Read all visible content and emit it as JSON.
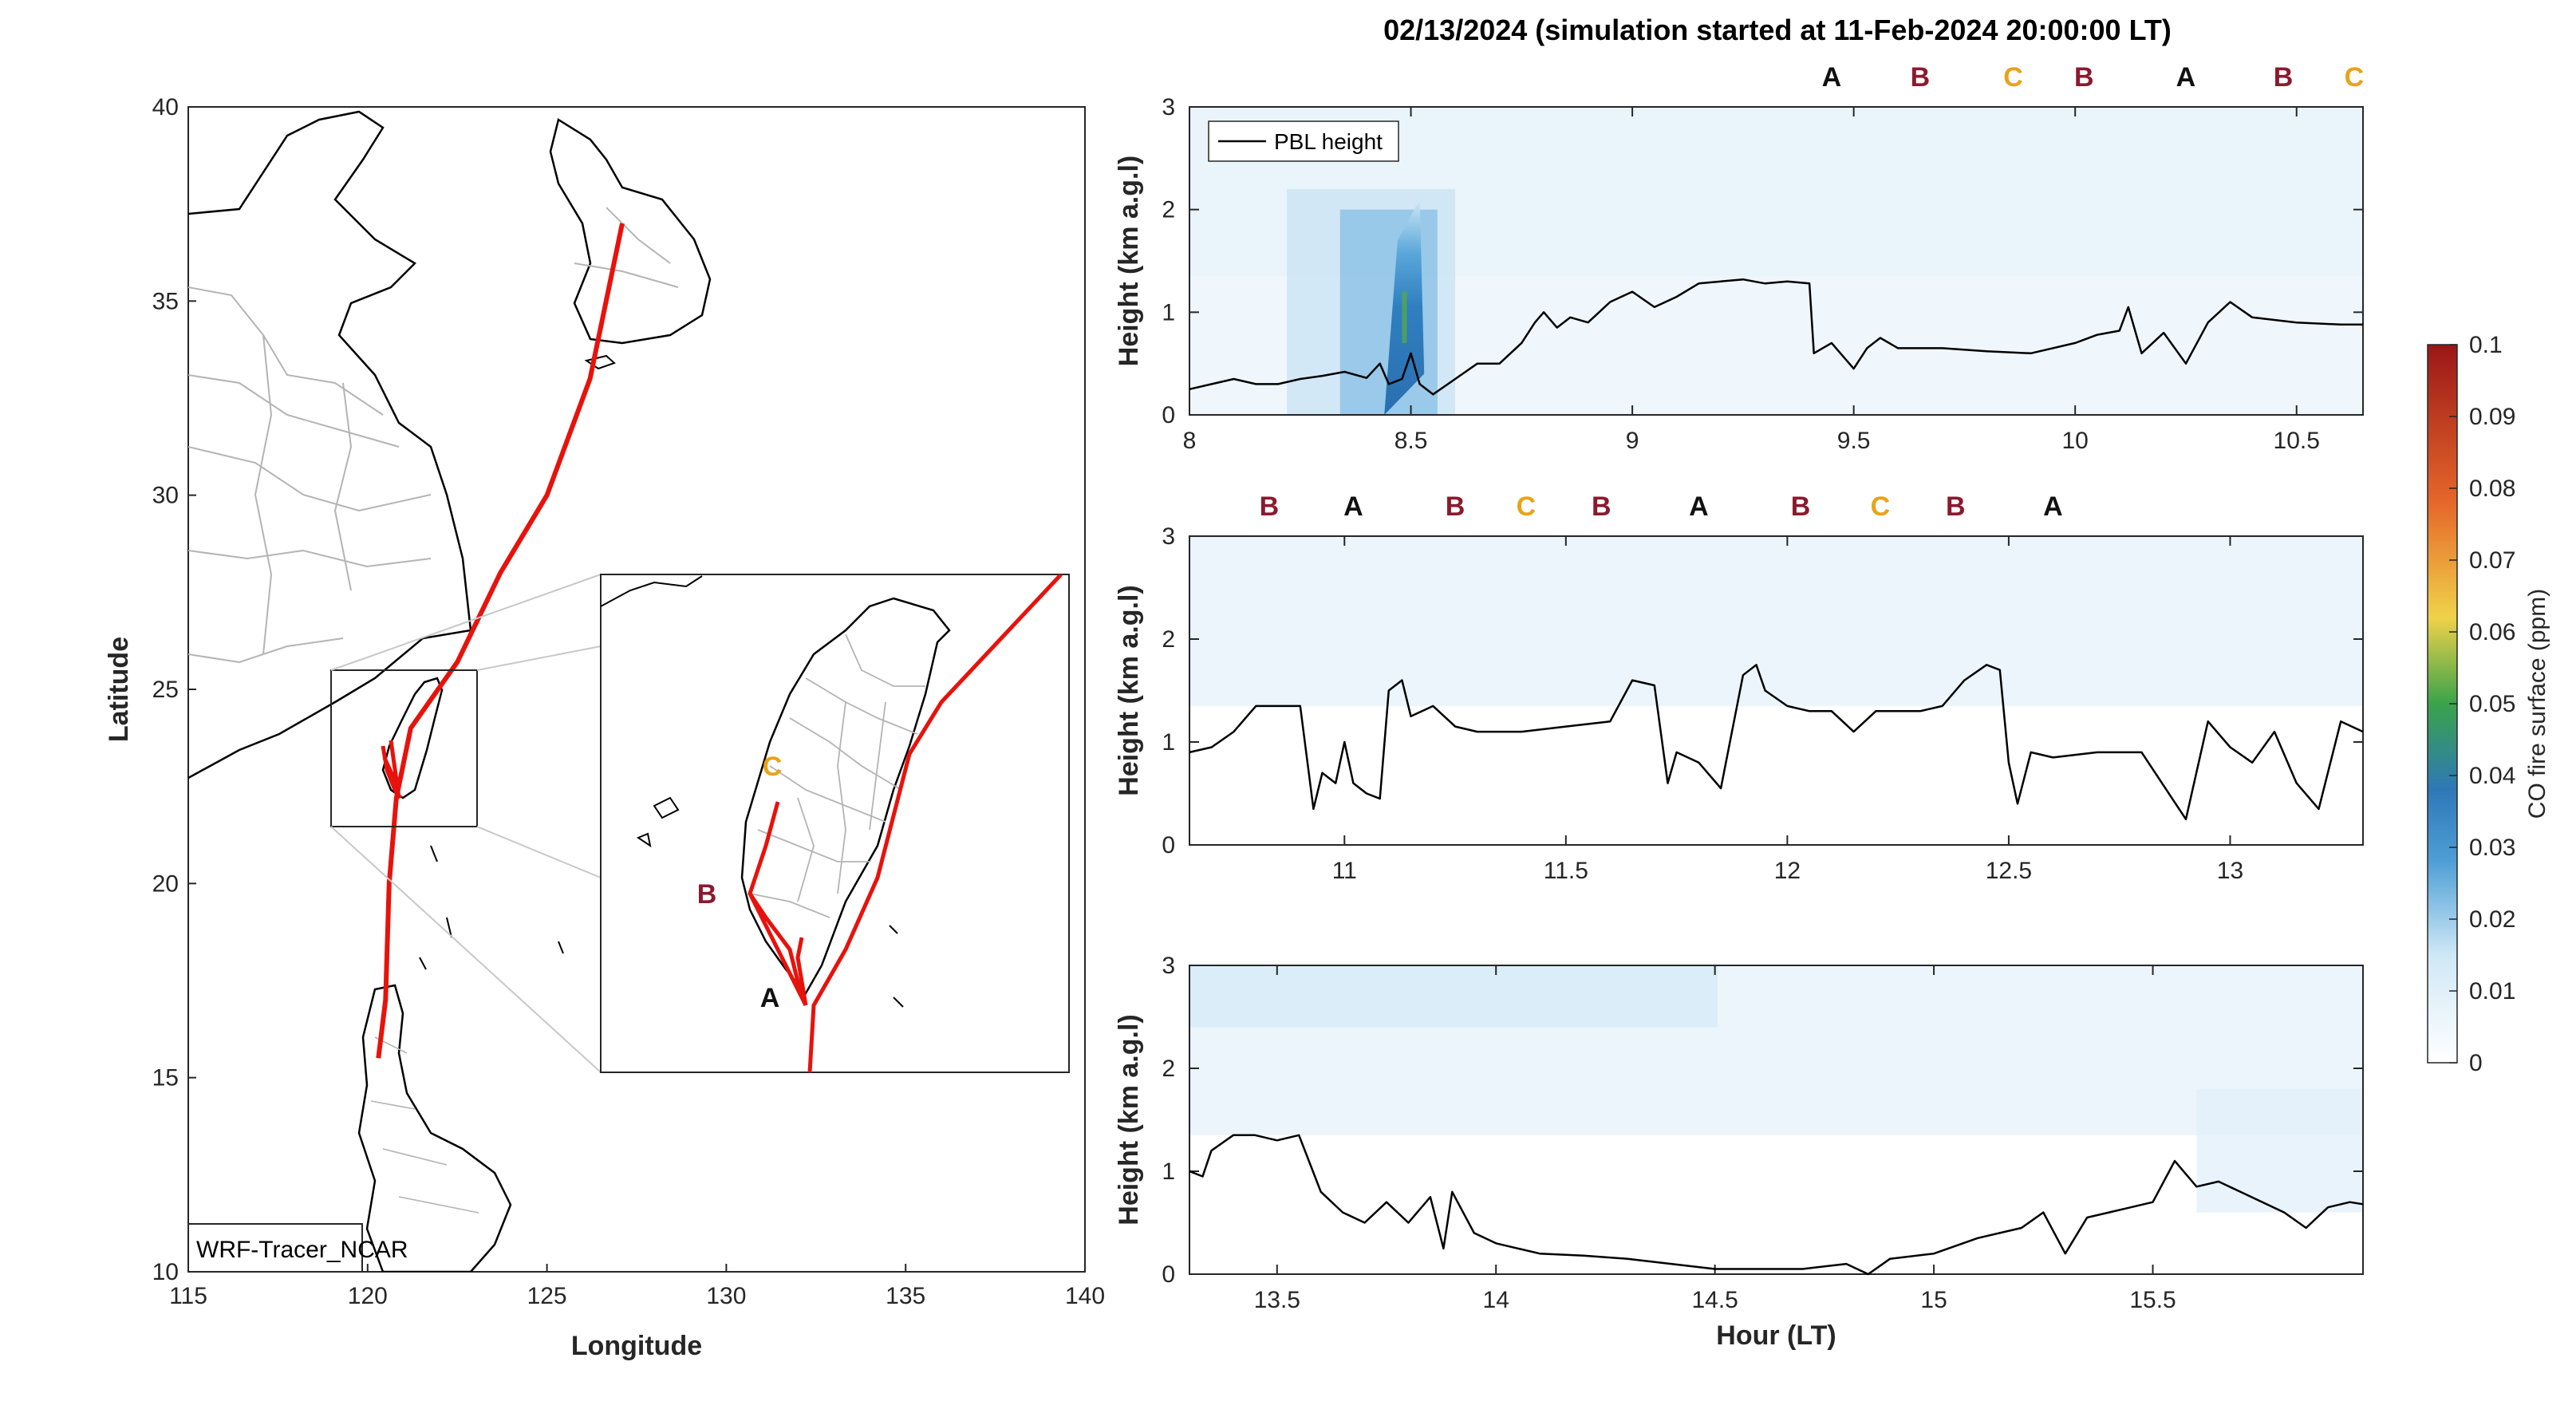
{
  "title": "02/13/2024 (simulation started at 11-Feb-2024 20:00:00 LT)",
  "colors": {
    "track": "#e8120c",
    "coast": "#000000",
    "border": "#b4b4b4",
    "A": "#111111",
    "B": "#8b1a2e",
    "C": "#e8a317",
    "pbl": "#000000"
  },
  "map": {
    "xlabel": "Longitude",
    "ylabel": "Latitude",
    "xlim": [
      115,
      140
    ],
    "ylim": [
      10,
      40
    ],
    "xticks": [
      "115",
      "120",
      "125",
      "130",
      "135",
      "140"
    ],
    "yticks": [
      "10",
      "15",
      "20",
      "25",
      "30",
      "35",
      "40"
    ],
    "label_box": "WRF-Tracer_NCAR",
    "track": [
      [
        127.1,
        37.0
      ],
      [
        126.2,
        33.0
      ],
      [
        125.0,
        30.0
      ],
      [
        123.7,
        28.0
      ],
      [
        122.5,
        25.7
      ],
      [
        121.2,
        24.0
      ],
      [
        120.8,
        22.2
      ],
      [
        120.6,
        20.0
      ],
      [
        120.5,
        17.0
      ],
      [
        120.3,
        15.5
      ]
    ],
    "inset_labels": [
      "A",
      "B",
      "C"
    ],
    "tw_track_labels": {
      "A": "A",
      "B": "B",
      "C": "C"
    }
  },
  "colorbar": {
    "label": "CO fire surface (ppm)",
    "ticks": [
      "0",
      "0.01",
      "0.02",
      "0.03",
      "0.04",
      "0.05",
      "0.06",
      "0.07",
      "0.08",
      "0.09",
      "0.1"
    ],
    "range": [
      0,
      0.1
    ]
  },
  "chart_data": [
    {
      "type": "line",
      "panel": "top",
      "xlim": [
        8,
        10.65
      ],
      "ylim": [
        0,
        3
      ],
      "xticks": [
        "8",
        "8.5",
        "9",
        "9.5",
        "10",
        "10.5"
      ],
      "yticks": [
        "0",
        "1",
        "2",
        "3"
      ],
      "ylabel": "Height (km a.g.l)",
      "legend": "PBL height",
      "markers": [
        {
          "x": 9.45,
          "label": "A"
        },
        {
          "x": 9.65,
          "label": "B"
        },
        {
          "x": 9.86,
          "label": "C"
        },
        {
          "x": 10.02,
          "label": "B"
        },
        {
          "x": 10.25,
          "label": "A"
        },
        {
          "x": 10.47,
          "label": "B"
        },
        {
          "x": 10.63,
          "label": "C"
        }
      ],
      "series": [
        {
          "name": "PBL height",
          "x": [
            8.0,
            8.05,
            8.1,
            8.15,
            8.2,
            8.25,
            8.3,
            8.35,
            8.4,
            8.43,
            8.45,
            8.48,
            8.5,
            8.52,
            8.55,
            8.6,
            8.65,
            8.7,
            8.75,
            8.78,
            8.8,
            8.83,
            8.86,
            8.9,
            8.95,
            9.0,
            9.05,
            9.1,
            9.15,
            9.2,
            9.25,
            9.3,
            9.35,
            9.4,
            9.41,
            9.45,
            9.5,
            9.53,
            9.56,
            9.6,
            9.7,
            9.8,
            9.9,
            10.0,
            10.05,
            10.1,
            10.12,
            10.15,
            10.2,
            10.25,
            10.3,
            10.35,
            10.4,
            10.5,
            10.6,
            10.65
          ],
          "y": [
            0.25,
            0.3,
            0.35,
            0.3,
            0.3,
            0.35,
            0.38,
            0.42,
            0.36,
            0.5,
            0.3,
            0.35,
            0.6,
            0.3,
            0.2,
            0.35,
            0.5,
            0.5,
            0.7,
            0.9,
            1.0,
            0.85,
            0.95,
            0.9,
            1.1,
            1.2,
            1.05,
            1.15,
            1.28,
            1.3,
            1.32,
            1.28,
            1.3,
            1.28,
            0.6,
            0.7,
            0.45,
            0.65,
            0.75,
            0.65,
            0.65,
            0.62,
            0.6,
            0.7,
            0.78,
            0.82,
            1.05,
            0.6,
            0.8,
            0.5,
            0.9,
            1.1,
            0.95,
            0.9,
            0.88,
            0.88
          ]
        }
      ]
    },
    {
      "type": "line",
      "panel": "middle",
      "xlim": [
        10.65,
        13.3
      ],
      "ylim": [
        0,
        3
      ],
      "xticks": [
        "11",
        "11.5",
        "12",
        "12.5",
        "13"
      ],
      "yticks": [
        "0",
        "1",
        "2",
        "3"
      ],
      "ylabel": "Height (km a.g.l)",
      "markers": [
        {
          "x": 10.83,
          "label": "B"
        },
        {
          "x": 11.02,
          "label": "A"
        },
        {
          "x": 11.25,
          "label": "B"
        },
        {
          "x": 11.41,
          "label": "C"
        },
        {
          "x": 11.58,
          "label": "B"
        },
        {
          "x": 11.8,
          "label": "A"
        },
        {
          "x": 12.03,
          "label": "B"
        },
        {
          "x": 12.21,
          "label": "C"
        },
        {
          "x": 12.38,
          "label": "B"
        },
        {
          "x": 12.6,
          "label": "A"
        }
      ],
      "series": [
        {
          "name": "PBL height",
          "x": [
            10.65,
            10.7,
            10.75,
            10.8,
            10.85,
            10.9,
            10.93,
            10.95,
            10.98,
            11.0,
            11.02,
            11.05,
            11.08,
            11.1,
            11.13,
            11.15,
            11.2,
            11.25,
            11.3,
            11.4,
            11.5,
            11.6,
            11.65,
            11.7,
            11.73,
            11.75,
            11.8,
            11.85,
            11.9,
            11.93,
            11.95,
            12.0,
            12.05,
            12.1,
            12.15,
            12.2,
            12.25,
            12.3,
            12.35,
            12.4,
            12.45,
            12.48,
            12.5,
            12.52,
            12.55,
            12.6,
            12.7,
            12.8,
            12.9,
            12.95,
            13.0,
            13.05,
            13.1,
            13.15,
            13.2,
            13.25,
            13.3
          ],
          "y": [
            0.9,
            0.95,
            1.1,
            1.35,
            1.35,
            1.35,
            0.35,
            0.7,
            0.6,
            1.0,
            0.6,
            0.5,
            0.45,
            1.5,
            1.6,
            1.25,
            1.35,
            1.15,
            1.1,
            1.1,
            1.15,
            1.2,
            1.6,
            1.55,
            0.6,
            0.9,
            0.8,
            0.55,
            1.65,
            1.75,
            1.5,
            1.35,
            1.3,
            1.3,
            1.1,
            1.3,
            1.3,
            1.3,
            1.35,
            1.6,
            1.75,
            1.7,
            0.8,
            0.4,
            0.9,
            0.85,
            0.9,
            0.9,
            0.25,
            1.2,
            0.95,
            0.8,
            1.1,
            0.6,
            0.35,
            1.2,
            1.1
          ]
        }
      ]
    },
    {
      "type": "line",
      "panel": "bottom",
      "xlim": [
        13.3,
        15.98
      ],
      "ylim": [
        0,
        3
      ],
      "xticks": [
        "13.5",
        "14",
        "14.5",
        "15",
        "15.5"
      ],
      "yticks": [
        "0",
        "1",
        "2",
        "3"
      ],
      "ylabel": "Height (km a.g.l)",
      "xlabel": "Hour (LT)",
      "series": [
        {
          "name": "PBL height",
          "x": [
            13.3,
            13.33,
            13.35,
            13.4,
            13.45,
            13.5,
            13.55,
            13.6,
            13.65,
            13.7,
            13.75,
            13.8,
            13.85,
            13.88,
            13.9,
            13.95,
            14.0,
            14.05,
            14.1,
            14.2,
            14.3,
            14.4,
            14.5,
            14.6,
            14.7,
            14.8,
            14.85,
            14.9,
            15.0,
            15.1,
            15.2,
            15.25,
            15.3,
            15.35,
            15.4,
            15.5,
            15.55,
            15.6,
            15.65,
            15.7,
            15.8,
            15.85,
            15.9,
            15.95,
            15.98
          ],
          "y": [
            1.0,
            0.95,
            1.2,
            1.35,
            1.35,
            1.3,
            1.35,
            0.8,
            0.6,
            0.5,
            0.7,
            0.5,
            0.75,
            0.25,
            0.8,
            0.4,
            0.3,
            0.25,
            0.2,
            0.18,
            0.15,
            0.1,
            0.05,
            0.05,
            0.05,
            0.1,
            0.0,
            0.15,
            0.2,
            0.35,
            0.45,
            0.6,
            0.2,
            0.55,
            0.6,
            0.7,
            1.1,
            0.85,
            0.9,
            0.8,
            0.6,
            0.45,
            0.65,
            0.7,
            0.68
          ]
        }
      ]
    }
  ]
}
